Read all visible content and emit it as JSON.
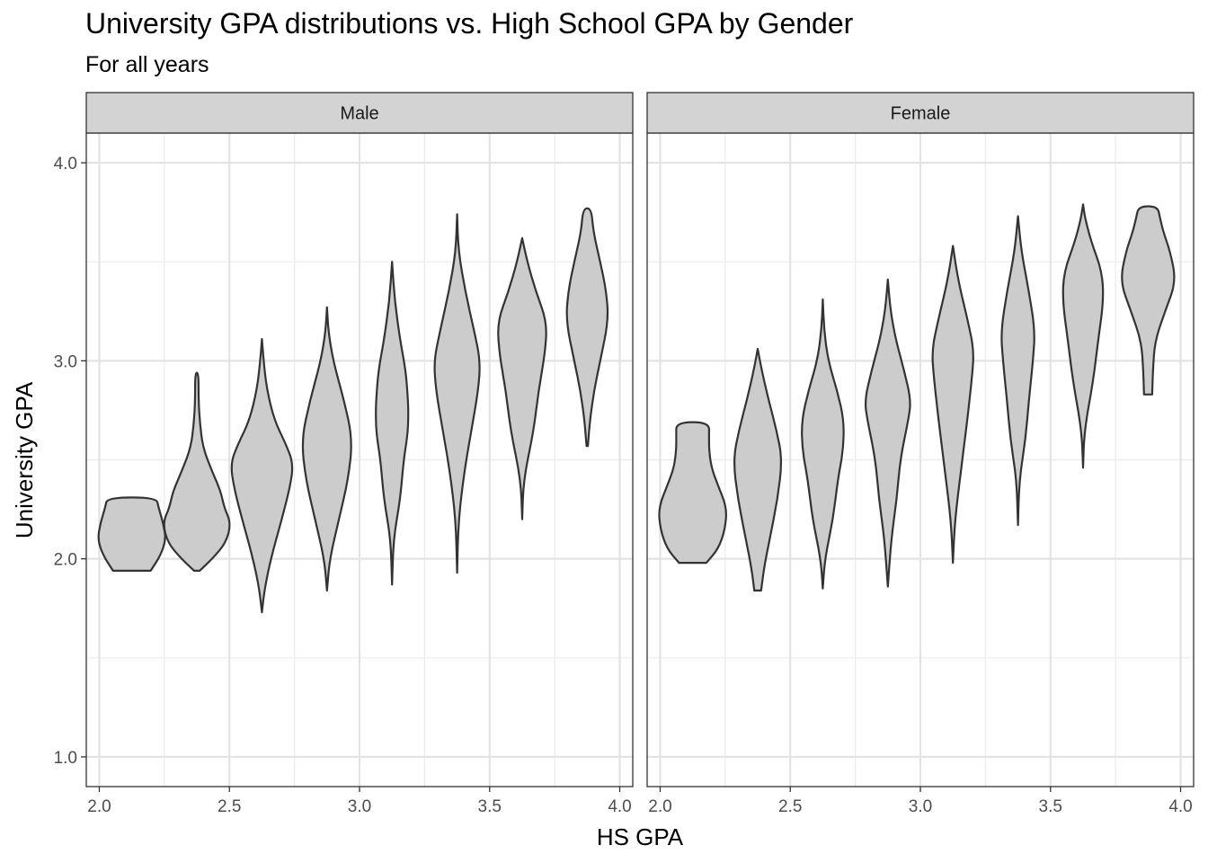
{
  "chart_data": {
    "type": "violin",
    "title": "University GPA distributions vs. High School GPA by Gender",
    "subtitle": "For all years",
    "xlabel": "HS GPA",
    "ylabel": "University GPA",
    "xlim": [
      1.95,
      4.05
    ],
    "ylim": [
      0.85,
      4.15
    ],
    "x_ticks": [
      "2.0",
      "2.5",
      "3.0",
      "3.5",
      "4.0"
    ],
    "y_ticks": [
      "1.0",
      "2.0",
      "3.0",
      "4.0"
    ],
    "grid": true,
    "fill_color": "#cccccc",
    "outline_color": "#333333",
    "strip_color": "#d3d3d3",
    "panels": [
      {
        "label": "Male",
        "violins": [
          {
            "x": 2.125,
            "min": 1.94,
            "max": 2.31,
            "profile": [
              [
                1.94,
                0.55
              ],
              [
                2.02,
                0.85
              ],
              [
                2.1,
                1.0
              ],
              [
                2.18,
                0.92
              ],
              [
                2.26,
                0.78
              ],
              [
                2.31,
                0.72
              ]
            ]
          },
          {
            "x": 2.375,
            "min": 1.94,
            "max": 2.94,
            "profile": [
              [
                1.94,
                0.08
              ],
              [
                2.0,
                0.45
              ],
              [
                2.08,
                0.85
              ],
              [
                2.18,
                1.0
              ],
              [
                2.26,
                0.8
              ],
              [
                2.34,
                0.7
              ],
              [
                2.44,
                0.45
              ],
              [
                2.56,
                0.18
              ],
              [
                2.68,
                0.09
              ],
              [
                2.8,
                0.05
              ],
              [
                2.94,
                0.05
              ]
            ]
          },
          {
            "x": 2.625,
            "min": 1.73,
            "max": 3.11,
            "profile": [
              [
                1.73,
                0.0
              ],
              [
                1.85,
                0.08
              ],
              [
                2.0,
                0.26
              ],
              [
                2.2,
                0.58
              ],
              [
                2.36,
                0.82
              ],
              [
                2.48,
                0.92
              ],
              [
                2.58,
                0.7
              ],
              [
                2.7,
                0.36
              ],
              [
                2.86,
                0.14
              ],
              [
                3.0,
                0.05
              ],
              [
                3.11,
                0.0
              ]
            ]
          },
          {
            "x": 2.875,
            "min": 1.84,
            "max": 3.27,
            "profile": [
              [
                1.84,
                0.0
              ],
              [
                2.0,
                0.08
              ],
              [
                2.2,
                0.35
              ],
              [
                2.4,
                0.62
              ],
              [
                2.6,
                0.75
              ],
              [
                2.8,
                0.5
              ],
              [
                3.0,
                0.18
              ],
              [
                3.15,
                0.04
              ],
              [
                3.27,
                0.0
              ]
            ]
          },
          {
            "x": 3.125,
            "min": 1.87,
            "max": 3.5,
            "profile": [
              [
                1.87,
                0.0
              ],
              [
                2.1,
                0.04
              ],
              [
                2.3,
                0.24
              ],
              [
                2.5,
                0.34
              ],
              [
                2.62,
                0.45
              ],
              [
                2.72,
                0.48
              ],
              [
                2.82,
                0.46
              ],
              [
                2.95,
                0.4
              ],
              [
                3.1,
                0.24
              ],
              [
                3.3,
                0.08
              ],
              [
                3.5,
                0.0
              ]
            ]
          },
          {
            "x": 3.375,
            "min": 1.93,
            "max": 3.74,
            "profile": [
              [
                1.93,
                0.0
              ],
              [
                2.2,
                0.04
              ],
              [
                2.45,
                0.22
              ],
              [
                2.65,
                0.42
              ],
              [
                2.85,
                0.62
              ],
              [
                3.0,
                0.68
              ],
              [
                3.15,
                0.5
              ],
              [
                3.35,
                0.24
              ],
              [
                3.55,
                0.04
              ],
              [
                3.74,
                0.0
              ]
            ]
          },
          {
            "x": 3.625,
            "min": 2.2,
            "max": 3.62,
            "profile": [
              [
                2.2,
                0.0
              ],
              [
                2.4,
                0.04
              ],
              [
                2.65,
                0.34
              ],
              [
                2.85,
                0.48
              ],
              [
                3.05,
                0.68
              ],
              [
                3.2,
                0.72
              ],
              [
                3.35,
                0.4
              ],
              [
                3.5,
                0.15
              ],
              [
                3.62,
                0.0
              ]
            ]
          },
          {
            "x": 3.875,
            "min": 2.57,
            "max": 3.77,
            "profile": [
              [
                2.57,
                0.02
              ],
              [
                2.7,
                0.08
              ],
              [
                2.85,
                0.2
              ],
              [
                3.0,
                0.38
              ],
              [
                3.2,
                0.62
              ],
              [
                3.35,
                0.56
              ],
              [
                3.5,
                0.38
              ],
              [
                3.65,
                0.18
              ],
              [
                3.77,
                0.12
              ]
            ]
          }
        ]
      },
      {
        "label": "Female",
        "violins": [
          {
            "x": 2.125,
            "min": 1.98,
            "max": 2.69,
            "profile": [
              [
                1.98,
                0.4
              ],
              [
                2.05,
                0.75
              ],
              [
                2.15,
                0.95
              ],
              [
                2.26,
                1.0
              ],
              [
                2.38,
                0.72
              ],
              [
                2.46,
                0.55
              ],
              [
                2.55,
                0.48
              ],
              [
                2.62,
                0.48
              ],
              [
                2.69,
                0.48
              ]
            ]
          },
          {
            "x": 2.375,
            "min": 1.84,
            "max": 3.06,
            "profile": [
              [
                1.84,
                0.1
              ],
              [
                1.95,
                0.18
              ],
              [
                2.1,
                0.35
              ],
              [
                2.3,
                0.58
              ],
              [
                2.5,
                0.72
              ],
              [
                2.65,
                0.55
              ],
              [
                2.8,
                0.32
              ],
              [
                2.95,
                0.12
              ],
              [
                3.06,
                0.0
              ]
            ]
          },
          {
            "x": 2.625,
            "min": 1.85,
            "max": 3.31,
            "profile": [
              [
                1.85,
                0.0
              ],
              [
                2.0,
                0.06
              ],
              [
                2.2,
                0.3
              ],
              [
                2.4,
                0.44
              ],
              [
                2.55,
                0.6
              ],
              [
                2.7,
                0.62
              ],
              [
                2.85,
                0.42
              ],
              [
                3.0,
                0.16
              ],
              [
                3.15,
                0.04
              ],
              [
                3.31,
                0.0
              ]
            ]
          },
          {
            "x": 2.875,
            "min": 1.86,
            "max": 3.41,
            "profile": [
              [
                1.86,
                0.0
              ],
              [
                2.1,
                0.1
              ],
              [
                2.3,
                0.26
              ],
              [
                2.5,
                0.36
              ],
              [
                2.7,
                0.6
              ],
              [
                2.8,
                0.68
              ],
              [
                2.95,
                0.48
              ],
              [
                3.1,
                0.24
              ],
              [
                3.25,
                0.08
              ],
              [
                3.41,
                0.0
              ]
            ]
          },
          {
            "x": 3.125,
            "min": 1.98,
            "max": 3.58,
            "profile": [
              [
                1.98,
                0.0
              ],
              [
                2.2,
                0.06
              ],
              [
                2.45,
                0.24
              ],
              [
                2.7,
                0.42
              ],
              [
                2.9,
                0.55
              ],
              [
                3.05,
                0.62
              ],
              [
                3.2,
                0.44
              ],
              [
                3.4,
                0.16
              ],
              [
                3.58,
                0.0
              ]
            ]
          },
          {
            "x": 3.375,
            "min": 2.17,
            "max": 3.73,
            "profile": [
              [
                2.17,
                0.0
              ],
              [
                2.4,
                0.04
              ],
              [
                2.6,
                0.22
              ],
              [
                2.8,
                0.32
              ],
              [
                3.0,
                0.44
              ],
              [
                3.15,
                0.5
              ],
              [
                3.35,
                0.32
              ],
              [
                3.55,
                0.1
              ],
              [
                3.73,
                0.0
              ]
            ]
          },
          {
            "x": 3.625,
            "min": 2.46,
            "max": 3.79,
            "profile": [
              [
                2.46,
                0.0
              ],
              [
                2.65,
                0.04
              ],
              [
                2.9,
                0.3
              ],
              [
                3.1,
                0.44
              ],
              [
                3.3,
                0.6
              ],
              [
                3.45,
                0.56
              ],
              [
                3.6,
                0.24
              ],
              [
                3.72,
                0.06
              ],
              [
                3.79,
                0.0
              ]
            ]
          },
          {
            "x": 3.875,
            "min": 2.83,
            "max": 3.78,
            "profile": [
              [
                2.83,
                0.12
              ],
              [
                2.95,
                0.14
              ],
              [
                3.1,
                0.2
              ],
              [
                3.25,
                0.5
              ],
              [
                3.4,
                0.82
              ],
              [
                3.55,
                0.65
              ],
              [
                3.65,
                0.45
              ],
              [
                3.72,
                0.35
              ],
              [
                3.78,
                0.28
              ]
            ]
          }
        ]
      }
    ]
  }
}
